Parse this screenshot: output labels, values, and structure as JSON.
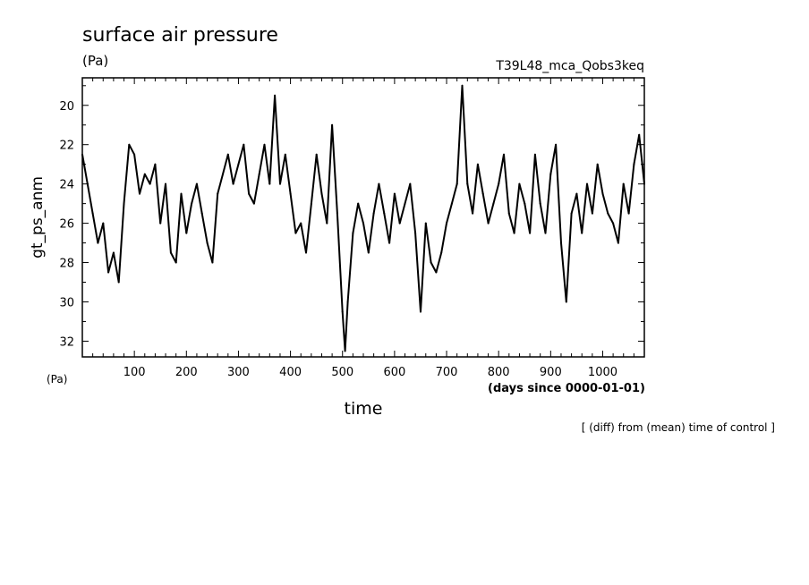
{
  "chart_data": {
    "type": "line",
    "title": "surface air pressure",
    "title_unit": "(Pa)",
    "experiment": "T39L48_mca_Qobs3keq",
    "xlabel": "time",
    "xunit": "(days since 0000-01-01)",
    "ylabel": "gt_ps_anm",
    "yunit": "(Pa)",
    "note": "[ (diff) from (mean) time of control ]",
    "xlim": [
      0,
      1080
    ],
    "ylim": [
      32.8,
      18.6
    ],
    "y_inverted": true,
    "xticks": [
      100,
      200,
      300,
      400,
      500,
      600,
      700,
      800,
      900,
      1000
    ],
    "yticks": [
      20,
      22,
      24,
      26,
      28,
      30,
      32
    ],
    "grid": false,
    "series": [
      {
        "color": "#000000",
        "x": [
          0,
          10,
          20,
          30,
          40,
          50,
          60,
          70,
          80,
          90,
          100,
          110,
          120,
          130,
          140,
          150,
          160,
          170,
          180,
          190,
          200,
          210,
          220,
          230,
          240,
          250,
          260,
          270,
          280,
          290,
          300,
          310,
          320,
          330,
          340,
          350,
          360,
          370,
          380,
          390,
          400,
          410,
          420,
          430,
          440,
          450,
          460,
          470,
          480,
          490,
          500,
          505,
          510,
          520,
          530,
          540,
          550,
          560,
          570,
          580,
          590,
          600,
          610,
          620,
          630,
          640,
          650,
          660,
          670,
          680,
          690,
          700,
          710,
          720,
          730,
          740,
          750,
          760,
          770,
          780,
          790,
          800,
          810,
          820,
          830,
          840,
          850,
          860,
          870,
          880,
          890,
          900,
          910,
          920,
          930,
          940,
          950,
          960,
          970,
          980,
          990,
          1000,
          1010,
          1020,
          1030,
          1040,
          1050,
          1060,
          1070,
          1080
        ],
        "y": [
          22.5,
          24.0,
          25.5,
          27.0,
          26.0,
          28.5,
          27.5,
          29.0,
          25.0,
          22.0,
          22.5,
          24.5,
          23.5,
          24.0,
          23.0,
          26.0,
          24.0,
          27.5,
          28.0,
          24.5,
          26.5,
          25.0,
          24.0,
          25.5,
          27.0,
          28.0,
          24.5,
          23.5,
          22.5,
          24.0,
          23.0,
          22.0,
          24.5,
          25.0,
          23.5,
          22.0,
          24.0,
          19.5,
          24.0,
          22.5,
          24.5,
          26.5,
          26.0,
          27.5,
          25.0,
          22.5,
          24.5,
          26.0,
          21.0,
          25.5,
          30.5,
          32.5,
          30.0,
          26.5,
          25.0,
          26.0,
          27.5,
          25.5,
          24.0,
          25.5,
          27.0,
          24.5,
          26.0,
          25.0,
          24.0,
          26.5,
          30.5,
          26.0,
          28.0,
          28.5,
          27.5,
          26.0,
          25.0,
          24.0,
          19.0,
          24.0,
          25.5,
          23.0,
          24.5,
          26.0,
          25.0,
          24.0,
          22.5,
          25.5,
          26.5,
          24.0,
          25.0,
          26.5,
          22.5,
          25.0,
          26.5,
          23.5,
          22.0,
          27.0,
          30.0,
          25.5,
          24.5,
          26.5,
          24.0,
          25.5,
          23.0,
          24.5,
          25.5,
          26.0,
          27.0,
          24.0,
          25.5,
          23.0,
          21.5,
          24.0
        ]
      }
    ]
  }
}
